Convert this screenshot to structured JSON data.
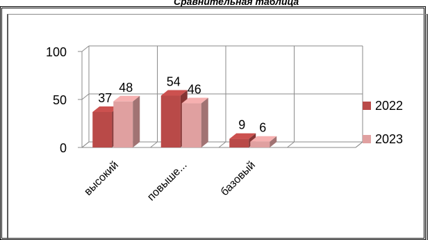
{
  "header": {
    "title_fragment": "Сравнительная таблица"
  },
  "chart_data": {
    "type": "bar",
    "title": "",
    "xlabel": "",
    "ylabel": "",
    "ylim": [
      0,
      100
    ],
    "yticks": [
      0,
      50,
      100
    ],
    "categories": [
      "высокий",
      "повыше...",
      "базовый",
      ""
    ],
    "series": [
      {
        "name": "2022",
        "values": [
          37,
          54,
          9,
          null
        ],
        "color": "#b94a48"
      },
      {
        "name": "2023",
        "values": [
          48,
          46,
          6,
          null
        ],
        "color": "#e0a0a0"
      }
    ],
    "grid": true,
    "legend_position": "right",
    "style": "3d-clustered-column"
  }
}
